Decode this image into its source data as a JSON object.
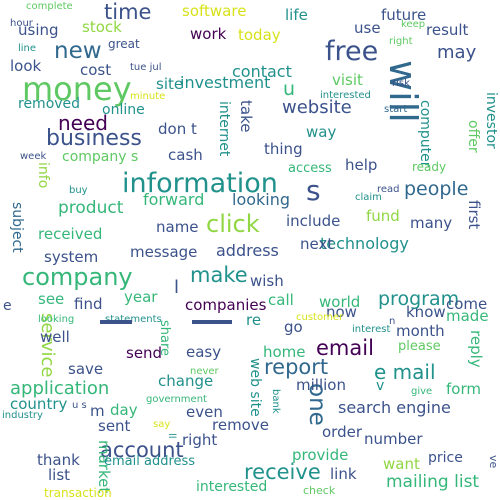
{
  "palette": {
    "background": "#ffffff",
    "deep_navy": "#440154",
    "indigo": "#3b528b",
    "blue": "#31688e",
    "teal": "#21918c",
    "green_teal": "#35b779",
    "light_green": "#5ec962",
    "lime": "#90d743",
    "yellow": "#d8e219"
  },
  "words": [
    {
      "text": "money",
      "color": "#5ec962"
    },
    {
      "text": "information",
      "color": "#21918c"
    },
    {
      "text": "will",
      "color": "#31688e"
    },
    {
      "text": "free",
      "color": "#3b528b"
    },
    {
      "text": "company",
      "color": "#35b779"
    },
    {
      "text": "business",
      "color": "#3b528b"
    },
    {
      "text": "click",
      "color": "#90d743"
    },
    {
      "text": "make",
      "color": "#21918c"
    },
    {
      "text": "email",
      "color": "#440154"
    },
    {
      "text": "e mail",
      "color": "#21918c"
    },
    {
      "text": "s",
      "color": "#3b528b"
    },
    {
      "text": "new",
      "color": "#31688e"
    },
    {
      "text": "need",
      "color": "#440154"
    },
    {
      "text": "one",
      "color": "#31688e"
    },
    {
      "text": "report",
      "color": "#31688e"
    },
    {
      "text": "time",
      "color": "#3b528b"
    },
    {
      "text": "people",
      "color": "#31688e"
    },
    {
      "text": "program",
      "color": "#21918c"
    },
    {
      "text": "account",
      "color": "#3b528b"
    },
    {
      "text": "receive",
      "color": "#21918c"
    },
    {
      "text": "service",
      "color": "#90d743"
    },
    {
      "text": "website",
      "color": "#3b528b"
    },
    {
      "text": "u",
      "color": "#35b779"
    },
    {
      "text": "may",
      "color": "#3b528b"
    },
    {
      "text": "investment",
      "color": "#21918c"
    },
    {
      "text": "application",
      "color": "#35b779"
    },
    {
      "text": "contact",
      "color": "#21918c"
    },
    {
      "text": "forward",
      "color": "#35b779"
    },
    {
      "text": "looking",
      "color": "#31688e"
    },
    {
      "text": "product",
      "color": "#35b779"
    },
    {
      "text": "search engine",
      "color": "#3b528b"
    },
    {
      "text": "mailing list",
      "color": "#35b779"
    },
    {
      "text": "address",
      "color": "#3b528b"
    },
    {
      "text": "technology",
      "color": "#21918c"
    },
    {
      "text": "software",
      "color": "#d8e219"
    },
    {
      "text": "stock",
      "color": "#90d743"
    },
    {
      "text": "using",
      "color": "#3b528b"
    },
    {
      "text": "life",
      "color": "#21918c"
    },
    {
      "text": "future",
      "color": "#3b528b"
    },
    {
      "text": "use",
      "color": "#3b528b"
    },
    {
      "text": "result",
      "color": "#3b528b"
    },
    {
      "text": "work",
      "color": "#440154"
    },
    {
      "text": "today",
      "color": "#d8e219"
    },
    {
      "text": "site",
      "color": "#21918c"
    },
    {
      "text": "cost",
      "color": "#3b528b"
    },
    {
      "text": "look",
      "color": "#3b528b"
    },
    {
      "text": "removed",
      "color": "#21918c"
    },
    {
      "text": "online",
      "color": "#21918c"
    },
    {
      "text": "visit",
      "color": "#5ec962"
    },
    {
      "text": "computer",
      "color": "#21918c"
    },
    {
      "text": "investor",
      "color": "#21918c"
    },
    {
      "text": "way",
      "color": "#21918c"
    },
    {
      "text": "don t",
      "color": "#3b528b"
    },
    {
      "text": "take",
      "color": "#3b528b"
    },
    {
      "text": "internet",
      "color": "#21918c"
    },
    {
      "text": "thing",
      "color": "#3b528b"
    },
    {
      "text": "cash",
      "color": "#3b528b"
    },
    {
      "text": "company s",
      "color": "#5ec962"
    },
    {
      "text": "help",
      "color": "#3b528b"
    },
    {
      "text": "offer",
      "color": "#5ec962"
    },
    {
      "text": "access",
      "color": "#35b779"
    },
    {
      "text": "ready",
      "color": "#5ec962"
    },
    {
      "text": "info",
      "color": "#90d743"
    },
    {
      "text": "subject",
      "color": "#31688e"
    },
    {
      "text": "name",
      "color": "#3b528b"
    },
    {
      "text": "include",
      "color": "#3b528b"
    },
    {
      "text": "fund",
      "color": "#90d743"
    },
    {
      "text": "many",
      "color": "#3b528b"
    },
    {
      "text": "first",
      "color": "#3b528b"
    },
    {
      "text": "received",
      "color": "#35b779"
    },
    {
      "text": "message",
      "color": "#3b528b"
    },
    {
      "text": "next",
      "color": "#3b528b"
    },
    {
      "text": "system",
      "color": "#3b528b"
    },
    {
      "text": "wish",
      "color": "#3b528b"
    },
    {
      "text": "world",
      "color": "#35b779"
    },
    {
      "text": "know",
      "color": "#3b528b"
    },
    {
      "text": "come",
      "color": "#3b528b"
    },
    {
      "text": "companies",
      "color": "#440154"
    },
    {
      "text": "year",
      "color": "#35b779"
    },
    {
      "text": "call",
      "color": "#35b779"
    },
    {
      "text": "find",
      "color": "#3b528b"
    },
    {
      "text": "see",
      "color": "#35b779"
    },
    {
      "text": "now",
      "color": "#3b528b"
    },
    {
      "text": "well",
      "color": "#3b528b"
    },
    {
      "text": "share",
      "color": "#35b779"
    },
    {
      "text": "re",
      "color": "#21918c"
    },
    {
      "text": "go",
      "color": "#3b528b"
    },
    {
      "text": "month",
      "color": "#3b528b"
    },
    {
      "text": "made",
      "color": "#35b779"
    },
    {
      "text": "reply",
      "color": "#35b779"
    },
    {
      "text": "send",
      "color": "#440154"
    },
    {
      "text": "easy",
      "color": "#3b528b"
    },
    {
      "text": "home",
      "color": "#35b779"
    },
    {
      "text": "million",
      "color": "#3b528b"
    },
    {
      "text": "please",
      "color": "#5ec962"
    },
    {
      "text": "save",
      "color": "#3b528b"
    },
    {
      "text": "change",
      "color": "#21918c"
    },
    {
      "text": "web site",
      "color": "#21918c"
    },
    {
      "text": "form",
      "color": "#35b779"
    },
    {
      "text": "day",
      "color": "#35b779"
    },
    {
      "text": "even",
      "color": "#3b528b"
    },
    {
      "text": "country",
      "color": "#21918c"
    },
    {
      "text": "sent",
      "color": "#3b528b"
    },
    {
      "text": "remove",
      "color": "#3b528b"
    },
    {
      "text": "right",
      "color": "#3b528b"
    },
    {
      "text": "market",
      "color": "#35b779"
    },
    {
      "text": "order",
      "color": "#3b528b"
    },
    {
      "text": "number",
      "color": "#3b528b"
    },
    {
      "text": "thank",
      "color": "#3b528b"
    },
    {
      "text": "email address",
      "color": "#21918c"
    },
    {
      "text": "provide",
      "color": "#35b779"
    },
    {
      "text": "link",
      "color": "#3b528b"
    },
    {
      "text": "want",
      "color": "#90d743"
    },
    {
      "text": "list",
      "color": "#3b528b"
    },
    {
      "text": "interested",
      "color": "#35b779"
    },
    {
      "text": "price",
      "color": "#3b528b"
    },
    {
      "text": "transaction",
      "color": "#d8e219"
    },
    {
      "text": "check",
      "color": "#5ec962"
    },
    {
      "text": "complete",
      "color": "#5ec962"
    },
    {
      "text": "hour",
      "color": "#3b528b"
    },
    {
      "text": "line",
      "color": "#21918c"
    },
    {
      "text": "great",
      "color": "#3b528b"
    },
    {
      "text": "tue jul",
      "color": "#3b528b"
    },
    {
      "text": "minute",
      "color": "#d8e219"
    },
    {
      "text": "interested",
      "color": "#21918c"
    },
    {
      "text": "keep",
      "color": "#5ec962"
    },
    {
      "text": "right",
      "color": "#5ec962"
    },
    {
      "text": "risk",
      "color": "#3b528b"
    },
    {
      "text": "start",
      "color": "#31688e"
    },
    {
      "text": "week",
      "color": "#3b528b"
    },
    {
      "text": "claim",
      "color": "#21918c"
    },
    {
      "text": "read",
      "color": "#3b528b"
    },
    {
      "text": "buy",
      "color": "#21918c"
    },
    {
      "text": "looking",
      "color": "#35b779"
    },
    {
      "text": "statements",
      "color": "#21918c"
    },
    {
      "text": "customer",
      "color": "#d8e219"
    },
    {
      "text": "interest",
      "color": "#21918c"
    },
    {
      "text": "n",
      "color": "#3b528b"
    },
    {
      "text": "never",
      "color": "#5ec962"
    },
    {
      "text": "industry",
      "color": "#21918c"
    },
    {
      "text": "u s",
      "color": "#3b528b"
    },
    {
      "text": "government",
      "color": "#35b779"
    },
    {
      "text": "bank",
      "color": "#21918c"
    },
    {
      "text": "give",
      "color": "#35b779"
    },
    {
      "text": "e",
      "color": "#3b528b"
    },
    {
      "text": "v",
      "color": "#21918c"
    },
    {
      "text": "m",
      "color": "#3b528b"
    },
    {
      "text": "l",
      "color": "#3b528b"
    },
    {
      "text": "say",
      "color": "#d8e219"
    },
    {
      "text": "ve",
      "color": "#3b528b"
    },
    {
      "text": "ll",
      "color": "#21918c"
    }
  ]
}
